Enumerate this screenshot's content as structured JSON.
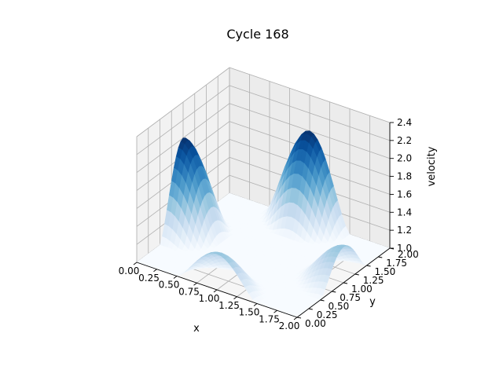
{
  "chart_data": {
    "type": "surface3d",
    "title": "Cycle 168",
    "xlabel": "x",
    "ylabel": "y",
    "zlabel": "velocity",
    "xlim": [
      0,
      2
    ],
    "ylim": [
      0,
      2
    ],
    "zlim": [
      1.0,
      2.4
    ],
    "grid": true,
    "colormap": "Blues",
    "x_ticks": [
      "0.00",
      "0.25",
      "0.50",
      "0.75",
      "1.00",
      "1.25",
      "1.50",
      "1.75",
      "2.00"
    ],
    "y_ticks": [
      "0.00",
      "0.25",
      "0.50",
      "0.75",
      "1.00",
      "1.25",
      "1.50",
      "1.75",
      "2.00"
    ],
    "z_ticks": [
      "1.0",
      "1.2",
      "1.4",
      "1.6",
      "1.8",
      "2.0",
      "2.2",
      "2.4"
    ],
    "surface": {
      "baseline": 1.0,
      "bumps": [
        {
          "x": 0.0,
          "y": 1.0,
          "peak": 2.0,
          "radius": 0.5
        },
        {
          "x": 1.0,
          "y": 2.0,
          "peak": 2.0,
          "radius": 0.5
        },
        {
          "x": 2.0,
          "y": 1.0,
          "peak": 1.4,
          "radius": 0.5
        },
        {
          "x": 1.0,
          "y": 0.0,
          "peak": 1.4,
          "radius": 0.5
        }
      ]
    }
  }
}
